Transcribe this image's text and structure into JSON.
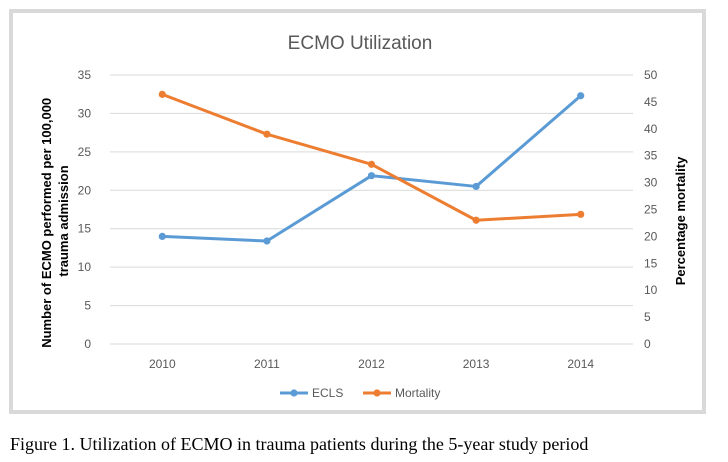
{
  "chart_data": {
    "type": "line",
    "title": "ECMO Utilization",
    "categories": [
      "2010",
      "2011",
      "2012",
      "2013",
      "2014"
    ],
    "y_left": {
      "label_lines": [
        "Number of ECMO performed per 100,000",
        "trauma admission"
      ],
      "ylim": [
        0,
        35
      ],
      "ticks": [
        0,
        5,
        10,
        15,
        20,
        25,
        30,
        35
      ]
    },
    "y_right": {
      "label": "Percentage mortality",
      "ylim": [
        0,
        50
      ],
      "ticks": [
        0,
        5,
        10,
        15,
        20,
        25,
        30,
        35,
        40,
        45,
        50
      ]
    },
    "grid": "horizontal",
    "legend_position": "bottom",
    "series": [
      {
        "name": "ECLS",
        "axis": "left",
        "color": "#5b9bd5",
        "values": [
          14.0,
          13.4,
          21.9,
          20.5,
          32.3
        ]
      },
      {
        "name": "Mortality",
        "axis": "right",
        "color": "#ed7d31",
        "values": [
          46.4,
          39.0,
          33.4,
          23.0,
          24.1
        ]
      }
    ]
  },
  "caption": "Figure 1. Utilization of ECMO in trauma patients during the 5-year study period"
}
